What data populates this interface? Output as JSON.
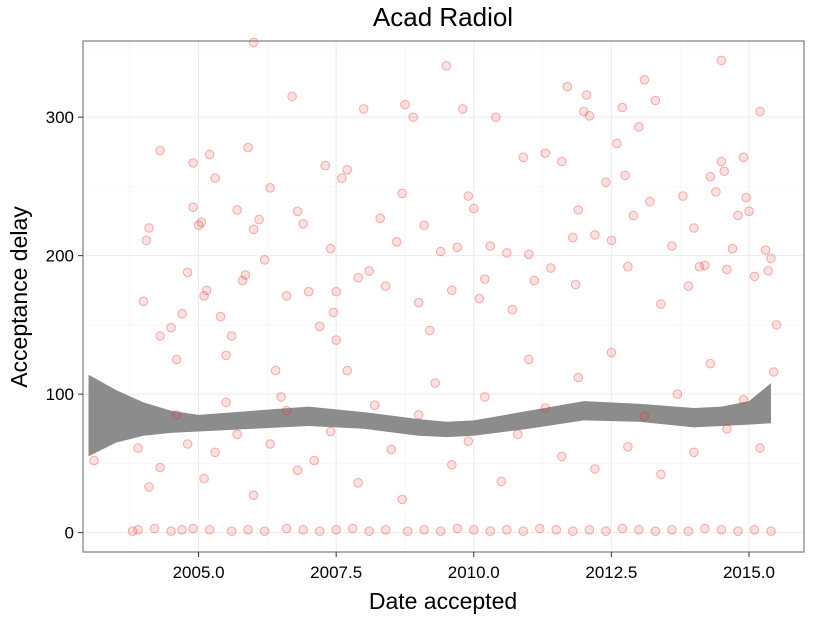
{
  "chart_data": {
    "type": "scatter",
    "title": "Acad Radiol",
    "xlabel": "Date accepted",
    "ylabel": "Acceptance delay",
    "xlim": [
      2002.9,
      2016.0
    ],
    "ylim": [
      -14,
      355
    ],
    "x_ticks": [
      {
        "value": 2005.0,
        "label": "2005.0"
      },
      {
        "value": 2007.5,
        "label": "2007.5"
      },
      {
        "value": 2010.0,
        "label": "2010.0"
      },
      {
        "value": 2012.5,
        "label": "2012.5"
      },
      {
        "value": 2015.0,
        "label": "2015.0"
      }
    ],
    "y_ticks": [
      {
        "value": 0,
        "label": "0"
      },
      {
        "value": 100,
        "label": "100"
      },
      {
        "value": 200,
        "label": "200"
      },
      {
        "value": 300,
        "label": "300"
      }
    ],
    "grid": true,
    "point_color": "#f03c3c",
    "ribbon_color": "#8c8c8c",
    "smooth_band": {
      "x": [
        2003.0,
        2003.5,
        2004.0,
        2004.5,
        2005.0,
        2006.0,
        2007.0,
        2008.0,
        2009.0,
        2009.5,
        2010.0,
        2011.0,
        2012.0,
        2013.0,
        2014.0,
        2014.5,
        2015.0,
        2015.4
      ],
      "upper": [
        114,
        103,
        94,
        88,
        85,
        88,
        91,
        87,
        82,
        80,
        81,
        88,
        95,
        93,
        90,
        91,
        95,
        108
      ],
      "lower": [
        55,
        65,
        70,
        72,
        73,
        75,
        77,
        75,
        70,
        69,
        70,
        75,
        81,
        80,
        76,
        77,
        78,
        79
      ]
    },
    "series": [
      {
        "points": [
          [
            2003.1,
            52
          ],
          [
            2003.8,
            1
          ],
          [
            2003.9,
            61
          ],
          [
            2004.0,
            167
          ],
          [
            2004.1,
            220
          ],
          [
            2004.05,
            211
          ],
          [
            2004.3,
            276
          ],
          [
            2004.3,
            142
          ],
          [
            2004.5,
            148
          ],
          [
            2004.6,
            125
          ],
          [
            2004.7,
            158
          ],
          [
            2004.8,
            188
          ],
          [
            2004.9,
            267
          ],
          [
            2004.9,
            235
          ],
          [
            2005.0,
            222
          ],
          [
            2005.05,
            224
          ],
          [
            2005.1,
            171
          ],
          [
            2005.15,
            175
          ],
          [
            2005.2,
            273
          ],
          [
            2005.3,
            256
          ],
          [
            2005.4,
            156
          ],
          [
            2005.5,
            128
          ],
          [
            2005.6,
            142
          ],
          [
            2005.7,
            233
          ],
          [
            2005.8,
            182
          ],
          [
            2005.85,
            186
          ],
          [
            2005.9,
            278
          ],
          [
            2006.0,
            354
          ],
          [
            2006.0,
            219
          ],
          [
            2006.1,
            226
          ],
          [
            2006.2,
            197
          ],
          [
            2006.3,
            249
          ],
          [
            2006.4,
            117
          ],
          [
            2006.5,
            98
          ],
          [
            2006.6,
            171
          ],
          [
            2006.7,
            315
          ],
          [
            2006.8,
            232
          ],
          [
            2006.9,
            223
          ],
          [
            2007.0,
            174
          ],
          [
            2007.2,
            149
          ],
          [
            2007.3,
            265
          ],
          [
            2007.4,
            205
          ],
          [
            2007.5,
            174
          ],
          [
            2007.45,
            159
          ],
          [
            2007.5,
            139
          ],
          [
            2007.6,
            256
          ],
          [
            2007.7,
            262
          ],
          [
            2007.9,
            184
          ],
          [
            2008.0,
            306
          ],
          [
            2008.1,
            189
          ],
          [
            2008.3,
            227
          ],
          [
            2008.4,
            178
          ],
          [
            2008.6,
            210
          ],
          [
            2008.7,
            245
          ],
          [
            2008.75,
            309
          ],
          [
            2008.9,
            300
          ],
          [
            2009.0,
            166
          ],
          [
            2009.1,
            222
          ],
          [
            2009.2,
            146
          ],
          [
            2009.4,
            203
          ],
          [
            2009.5,
            337
          ],
          [
            2009.6,
            175
          ],
          [
            2009.7,
            206
          ],
          [
            2009.8,
            306
          ],
          [
            2009.9,
            243
          ],
          [
            2010.0,
            234
          ],
          [
            2010.1,
            169
          ],
          [
            2010.2,
            183
          ],
          [
            2010.3,
            207
          ],
          [
            2010.4,
            300
          ],
          [
            2010.6,
            202
          ],
          [
            2010.7,
            161
          ],
          [
            2010.9,
            271
          ],
          [
            2011.0,
            201
          ],
          [
            2011.1,
            182
          ],
          [
            2011.3,
            274
          ],
          [
            2011.4,
            191
          ],
          [
            2011.6,
            268
          ],
          [
            2011.7,
            322
          ],
          [
            2011.8,
            213
          ],
          [
            2011.85,
            179
          ],
          [
            2011.9,
            233
          ],
          [
            2012.0,
            304
          ],
          [
            2012.05,
            316
          ],
          [
            2012.1,
            301
          ],
          [
            2012.2,
            215
          ],
          [
            2012.4,
            253
          ],
          [
            2012.5,
            211
          ],
          [
            2012.6,
            281
          ],
          [
            2012.7,
            307
          ],
          [
            2012.75,
            258
          ],
          [
            2012.8,
            192
          ],
          [
            2012.9,
            229
          ],
          [
            2013.0,
            293
          ],
          [
            2013.1,
            327
          ],
          [
            2013.2,
            239
          ],
          [
            2013.3,
            312
          ],
          [
            2013.4,
            165
          ],
          [
            2013.6,
            207
          ],
          [
            2013.8,
            243
          ],
          [
            2013.9,
            178
          ],
          [
            2014.0,
            220
          ],
          [
            2014.1,
            192
          ],
          [
            2014.2,
            193
          ],
          [
            2014.3,
            257
          ],
          [
            2014.4,
            246
          ],
          [
            2014.5,
            341
          ],
          [
            2014.5,
            268
          ],
          [
            2014.55,
            261
          ],
          [
            2014.6,
            190
          ],
          [
            2014.7,
            205
          ],
          [
            2014.8,
            229
          ],
          [
            2014.9,
            271
          ],
          [
            2014.95,
            242
          ],
          [
            2015.0,
            232
          ],
          [
            2015.1,
            185
          ],
          [
            2015.2,
            304
          ],
          [
            2015.3,
            204
          ],
          [
            2015.35,
            189
          ],
          [
            2015.4,
            198
          ],
          [
            2015.45,
            116
          ],
          [
            2015.5,
            150
          ],
          [
            2003.9,
            2
          ],
          [
            2004.2,
            3
          ],
          [
            2004.5,
            1
          ],
          [
            2004.7,
            2
          ],
          [
            2004.9,
            3
          ],
          [
            2005.2,
            2
          ],
          [
            2005.6,
            1
          ],
          [
            2005.9,
            2
          ],
          [
            2006.2,
            1
          ],
          [
            2006.6,
            3
          ],
          [
            2006.9,
            2
          ],
          [
            2007.2,
            1
          ],
          [
            2007.5,
            2
          ],
          [
            2007.8,
            3
          ],
          [
            2008.1,
            1
          ],
          [
            2008.4,
            2
          ],
          [
            2008.8,
            1
          ],
          [
            2009.1,
            2
          ],
          [
            2009.4,
            1
          ],
          [
            2009.7,
            3
          ],
          [
            2010.0,
            2
          ],
          [
            2010.3,
            1
          ],
          [
            2010.6,
            2
          ],
          [
            2010.9,
            1
          ],
          [
            2011.2,
            3
          ],
          [
            2011.5,
            2
          ],
          [
            2011.8,
            1
          ],
          [
            2012.1,
            2
          ],
          [
            2012.4,
            1
          ],
          [
            2012.7,
            3
          ],
          [
            2013.0,
            2
          ],
          [
            2013.3,
            1
          ],
          [
            2013.6,
            2
          ],
          [
            2013.9,
            1
          ],
          [
            2014.2,
            3
          ],
          [
            2014.5,
            2
          ],
          [
            2014.8,
            1
          ],
          [
            2015.1,
            2
          ],
          [
            2015.4,
            1
          ],
          [
            2004.1,
            33
          ],
          [
            2004.3,
            47
          ],
          [
            2004.6,
            85
          ],
          [
            2004.8,
            64
          ],
          [
            2005.1,
            39
          ],
          [
            2005.3,
            58
          ],
          [
            2005.5,
            94
          ],
          [
            2005.7,
            71
          ],
          [
            2006.0,
            27
          ],
          [
            2006.3,
            64
          ],
          [
            2006.6,
            88
          ],
          [
            2006.8,
            45
          ],
          [
            2007.1,
            52
          ],
          [
            2007.4,
            73
          ],
          [
            2007.7,
            117
          ],
          [
            2007.9,
            36
          ],
          [
            2008.2,
            92
          ],
          [
            2008.5,
            60
          ],
          [
            2008.7,
            24
          ],
          [
            2009.0,
            85
          ],
          [
            2009.3,
            108
          ],
          [
            2009.6,
            49
          ],
          [
            2009.9,
            66
          ],
          [
            2010.2,
            98
          ],
          [
            2010.5,
            37
          ],
          [
            2010.8,
            71
          ],
          [
            2011.0,
            125
          ],
          [
            2011.3,
            90
          ],
          [
            2011.6,
            55
          ],
          [
            2011.9,
            112
          ],
          [
            2012.2,
            46
          ],
          [
            2012.5,
            130
          ],
          [
            2012.8,
            62
          ],
          [
            2013.1,
            84
          ],
          [
            2013.4,
            42
          ],
          [
            2013.7,
            100
          ],
          [
            2014.0,
            58
          ],
          [
            2014.3,
            122
          ],
          [
            2014.6,
            75
          ],
          [
            2014.9,
            96
          ],
          [
            2015.2,
            61
          ]
        ]
      }
    ]
  }
}
